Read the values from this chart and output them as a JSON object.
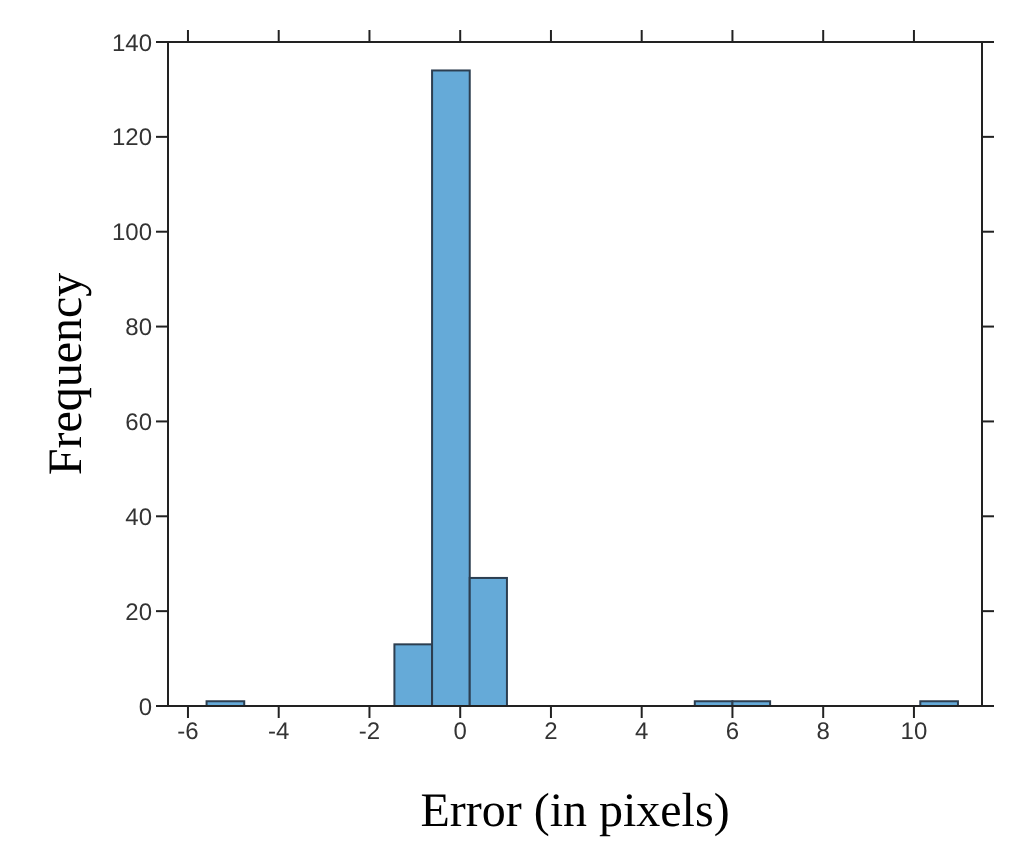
{
  "chart_data": {
    "type": "histogram",
    "xlabel": "Error (in pixels)",
    "ylabel": "Frequency",
    "bins": [
      -5.59,
      -4.76,
      -3.93,
      -3.11,
      -2.28,
      -1.45,
      -0.62,
      0.21,
      1.03,
      1.86,
      2.69,
      3.52,
      4.35,
      5.17,
      6.0,
      6.83,
      7.66,
      8.49,
      9.31,
      10.14,
      10.97
    ],
    "values": [
      1,
      0,
      0,
      0,
      0,
      13,
      134,
      27,
      0,
      0,
      0,
      0,
      0,
      1,
      1,
      0,
      0,
      0,
      0,
      1
    ],
    "color": "#65aad8",
    "xlim": [
      -6.44,
      11.5
    ],
    "ylim": [
      0,
      140
    ],
    "xticks": [
      -6,
      -4,
      -2,
      0,
      2,
      4,
      6,
      8,
      10
    ],
    "yticks": [
      0,
      20,
      40,
      60,
      80,
      100,
      120,
      140
    ],
    "grid": false
  }
}
